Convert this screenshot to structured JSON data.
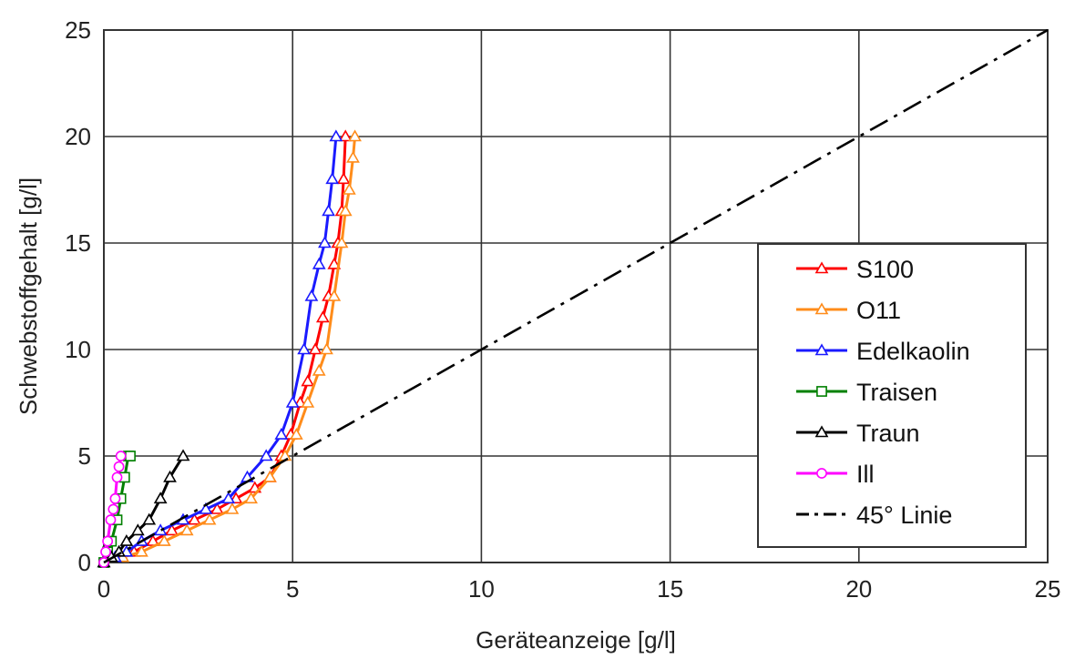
{
  "chart_data": {
    "type": "line",
    "xlabel": "Geräteanzeige [g/l]",
    "ylabel": "Schwebstoffgehalt [g/l]",
    "xlim": [
      0,
      25
    ],
    "ylim": [
      0,
      25
    ],
    "xticks": [
      0,
      5,
      10,
      15,
      20,
      25
    ],
    "yticks": [
      0,
      5,
      10,
      15,
      20,
      25
    ],
    "grid": true,
    "legend_position": "right",
    "series": [
      {
        "name": "S100",
        "color": "#ff0000",
        "marker": "triangle",
        "dashed": false,
        "x": [
          0,
          0.4,
          0.8,
          1.3,
          1.8,
          2.4,
          3.0,
          3.5,
          4.0,
          4.4,
          4.7,
          4.95,
          5.2,
          5.4,
          5.6,
          5.8,
          5.95,
          6.1,
          6.2,
          6.3,
          6.35,
          6.4
        ],
        "y": [
          0,
          0.25,
          0.5,
          1.0,
          1.5,
          2.0,
          2.5,
          3.0,
          3.5,
          4.0,
          5.0,
          6.0,
          7.5,
          8.5,
          10.0,
          11.5,
          12.5,
          14.0,
          15.0,
          16.5,
          18.0,
          20.0
        ]
      },
      {
        "name": "O11",
        "color": "#ff8c1a",
        "marker": "triangle",
        "dashed": false,
        "x": [
          0,
          0.5,
          1.0,
          1.6,
          2.2,
          2.8,
          3.4,
          3.9,
          4.4,
          4.8,
          5.1,
          5.4,
          5.7,
          5.9,
          6.1,
          6.3,
          6.4,
          6.5,
          6.6,
          6.65
        ],
        "y": [
          0,
          0.25,
          0.5,
          1.0,
          1.5,
          2.0,
          2.5,
          3.0,
          4.0,
          5.0,
          6.0,
          7.5,
          9.0,
          10.0,
          12.5,
          15.0,
          16.5,
          17.5,
          19.0,
          20.0
        ]
      },
      {
        "name": "Edelkaolin",
        "color": "#1a1aff",
        "marker": "triangle",
        "dashed": false,
        "x": [
          0,
          0.3,
          0.6,
          1.0,
          1.5,
          2.1,
          2.7,
          3.3,
          3.8,
          4.3,
          4.7,
          5.0,
          5.3,
          5.5,
          5.7,
          5.85,
          5.95,
          6.05,
          6.15
        ],
        "y": [
          0,
          0.25,
          0.5,
          1.0,
          1.5,
          2.0,
          2.5,
          3.0,
          4.0,
          5.0,
          6.0,
          7.5,
          10.0,
          12.5,
          14.0,
          15.0,
          16.5,
          18.0,
          20.0
        ]
      },
      {
        "name": "Traisen",
        "color": "#008000",
        "marker": "square",
        "dashed": false,
        "x": [
          0,
          0.1,
          0.2,
          0.35,
          0.45,
          0.55,
          0.65,
          0.7
        ],
        "y": [
          0,
          0.5,
          1.0,
          2.0,
          3.0,
          4.0,
          5.0,
          5.0
        ]
      },
      {
        "name": "Traun",
        "color": "#000000",
        "marker": "triangle",
        "dashed": false,
        "x": [
          0,
          0.2,
          0.4,
          0.6,
          0.9,
          1.2,
          1.5,
          1.75,
          2.1
        ],
        "y": [
          0,
          0.25,
          0.5,
          1.0,
          1.5,
          2.0,
          3.0,
          4.0,
          5.0
        ]
      },
      {
        "name": "Ill",
        "color": "#ff00ff",
        "marker": "circle",
        "dashed": false,
        "x": [
          0,
          0.05,
          0.1,
          0.18,
          0.25,
          0.3,
          0.35,
          0.4,
          0.45
        ],
        "y": [
          0,
          0.5,
          1.0,
          2.0,
          2.5,
          3.0,
          4.0,
          4.5,
          5.0
        ]
      },
      {
        "name": "45° Linie",
        "color": "#000000",
        "marker": "none",
        "dashed": true,
        "x": [
          0,
          25
        ],
        "y": [
          0,
          25
        ]
      }
    ]
  }
}
